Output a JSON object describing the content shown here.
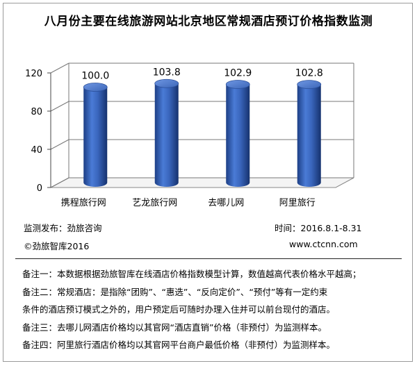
{
  "title": "八月份主要在线旅游网站北京地区常规酒店预订价格指数监测",
  "chart_data": {
    "type": "bar",
    "style": "3d-cylinder",
    "categories": [
      "携程旅行网",
      "艺龙旅行网",
      "去哪儿网",
      "阿里旅行"
    ],
    "values": [
      100.0,
      103.8,
      102.9,
      102.8
    ],
    "data_labels": [
      "100.0",
      "103.8",
      "102.9",
      "102.8"
    ],
    "yticks": [
      0,
      40,
      80,
      120
    ],
    "ylim": [
      0,
      120
    ],
    "grid": true,
    "bar_color": "#3f6cc4"
  },
  "footer": {
    "publisher": "监测发布：劲旅咨询",
    "copyright": "©劲旅智库2016",
    "period": "时间：2016.8.1-8.31",
    "website": "www.ctcnn.com"
  },
  "notes": [
    "备注一：本数据根据劲旅智库在线酒店价格指数模型计算，数值越高代表价格水平越高；",
    "备注二：常规酒店：是指除“团购”、“惠选”、“反向定价”、“预付”等有一定约束",
    "条件的酒店预订模式之外的，用户预定后可随时办理入住并可以前台现付的酒店。",
    "备注三：去哪儿网酒店价格均以其官网“酒店直销”价格（非预付）为监测样本。",
    "备注四：阿里旅行酒店价格均以其官网平台商户最低价格（非预付）为监测样本。"
  ]
}
